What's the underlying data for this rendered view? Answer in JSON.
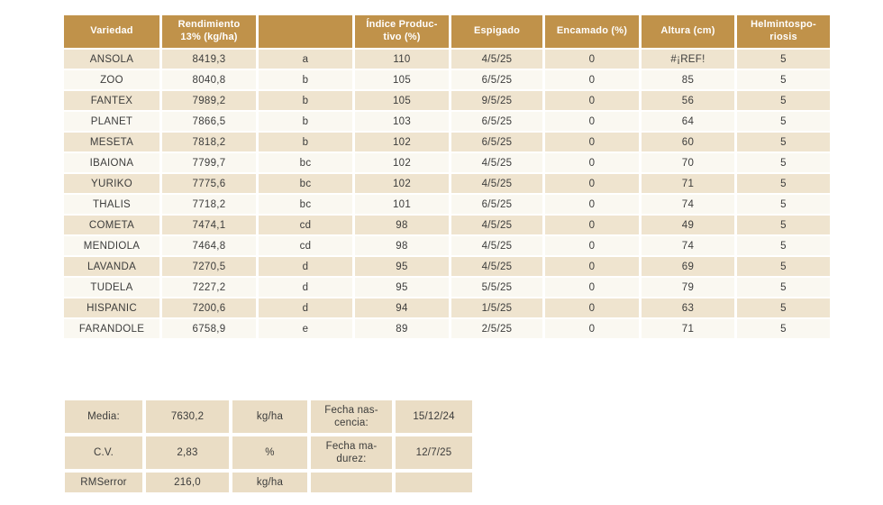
{
  "colors": {
    "header_bg": "#c0924a",
    "header_text": "#ffffff",
    "row_tan": "#efe4cf",
    "row_light": "#faf8f1",
    "summary_cell_bg": "#eaddc5",
    "text": "#3c3c3b",
    "page_bg": "#ffffff"
  },
  "results_table": {
    "columns": [
      "Variedad",
      "Rendimiento\n13% (kg/ha)",
      "",
      "Índice Produc-\ntivo (%)",
      "Espigado",
      "Encamado (%)",
      "Altura (cm)",
      "Helmintospo-\nriosis"
    ],
    "rows": [
      [
        "ANSOLA",
        "8419,3",
        "a",
        "110",
        "4/5/25",
        "0",
        "#¡REF!",
        "5"
      ],
      [
        "ZOO",
        "8040,8",
        "b",
        "105",
        "6/5/25",
        "0",
        "85",
        "5"
      ],
      [
        "FANTEX",
        "7989,2",
        "b",
        "105",
        "9/5/25",
        "0",
        "56",
        "5"
      ],
      [
        "PLANET",
        "7866,5",
        "b",
        "103",
        "6/5/25",
        "0",
        "64",
        "5"
      ],
      [
        "MESETA",
        "7818,2",
        "b",
        "102",
        "6/5/25",
        "0",
        "60",
        "5"
      ],
      [
        "IBAIONA",
        "7799,7",
        "bc",
        "102",
        "4/5/25",
        "0",
        "70",
        "5"
      ],
      [
        "YURIKO",
        "7775,6",
        "bc",
        "102",
        "4/5/25",
        "0",
        "71",
        "5"
      ],
      [
        "THALIS",
        "7718,2",
        "bc",
        "101",
        "6/5/25",
        "0",
        "74",
        "5"
      ],
      [
        "COMETA",
        "7474,1",
        "cd",
        "98",
        "4/5/25",
        "0",
        "49",
        "5"
      ],
      [
        "MENDIOLA",
        "7464,8",
        "cd",
        "98",
        "4/5/25",
        "0",
        "74",
        "5"
      ],
      [
        "LAVANDA",
        "7270,5",
        "d",
        "95",
        "4/5/25",
        "0",
        "69",
        "5"
      ],
      [
        "TUDELA",
        "7227,2",
        "d",
        "95",
        "5/5/25",
        "0",
        "79",
        "5"
      ],
      [
        "HISPANIC",
        "7200,6",
        "d",
        "94",
        "1/5/25",
        "0",
        "63",
        "5"
      ],
      [
        "FARANDOLE",
        "6758,9",
        "e",
        "89",
        "2/5/25",
        "0",
        "71",
        "5"
      ]
    ]
  },
  "summary_table": {
    "rows": [
      [
        "Media:",
        "7630,2",
        "kg/ha",
        "Fecha nas-\ncencia:",
        "15/12/24"
      ],
      [
        "C.V.",
        "2,83",
        "%",
        "Fecha ma-\ndurez:",
        "12/7/25"
      ],
      [
        "RMSerror",
        "216,0",
        "kg/ha",
        "",
        ""
      ]
    ]
  }
}
